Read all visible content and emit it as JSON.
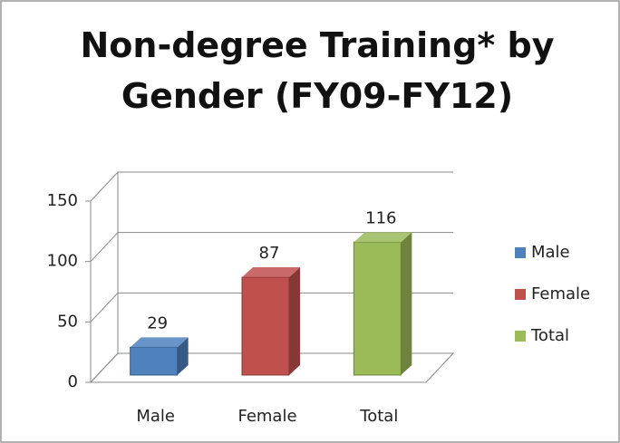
{
  "chart_data": {
    "type": "bar3d",
    "title": "Non-degree Training* by Gender (FY09-FY12)",
    "categories": [
      "Male",
      "Female",
      "Total"
    ],
    "values": [
      29,
      87,
      116
    ],
    "colors": [
      "#4f81bd",
      "#c0504d",
      "#9bbb59"
    ],
    "ylim": [
      0,
      150
    ],
    "yticks": [
      0,
      50,
      100,
      150
    ],
    "grid": true,
    "legend": "right"
  }
}
